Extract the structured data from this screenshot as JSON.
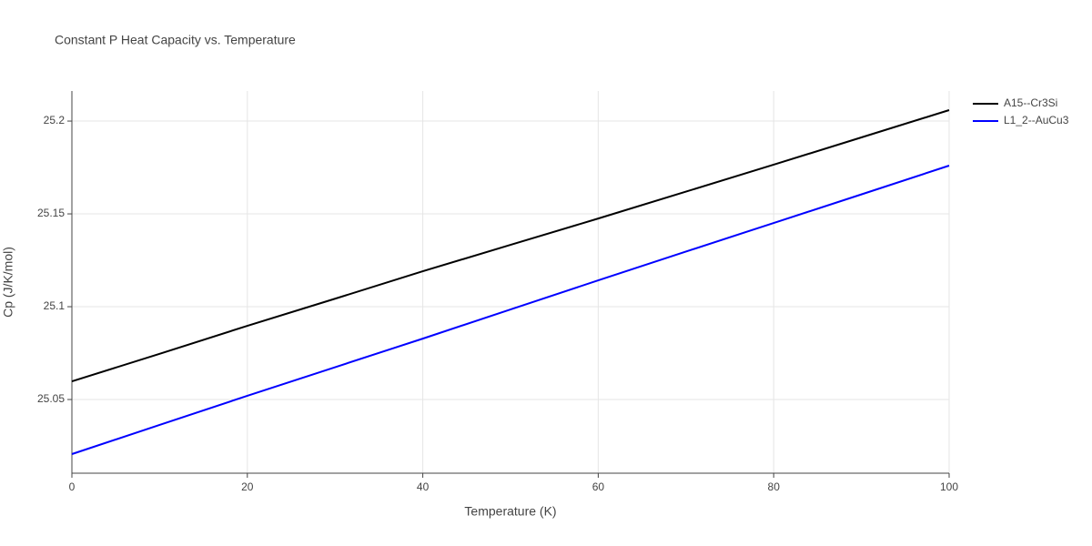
{
  "chart_data": {
    "type": "line",
    "title": "Constant P Heat Capacity vs. Temperature",
    "x_label": "Temperature (K)",
    "y_label": "Cp (J/K/mol)",
    "x": [
      0,
      10,
      20,
      30,
      40,
      50,
      60,
      70,
      80,
      90,
      100
    ],
    "series": [
      {
        "name": "A15--Cr3Si",
        "color": "#000000",
        "values": [
          25.0598,
          25.0746,
          25.0897,
          25.1043,
          25.1191,
          25.1333,
          25.1475,
          25.162,
          25.1765,
          25.1912,
          25.2059
        ]
      },
      {
        "name": "L1_2--AuCu3",
        "color": "#0000ff",
        "values": [
          25.0206,
          25.0363,
          25.052,
          25.0674,
          25.0828,
          25.0985,
          25.1142,
          25.1297,
          25.1451,
          25.1605,
          25.176
        ]
      }
    ],
    "xlim": [
      0,
      100
    ],
    "xticks": [
      0,
      20,
      40,
      60,
      80,
      100
    ],
    "ylim": [
      25.0103,
      25.2162
    ],
    "yticks": [
      25.05,
      25.1,
      25.15,
      25.2
    ],
    "grid": true,
    "legend": "outside-right-top"
  }
}
